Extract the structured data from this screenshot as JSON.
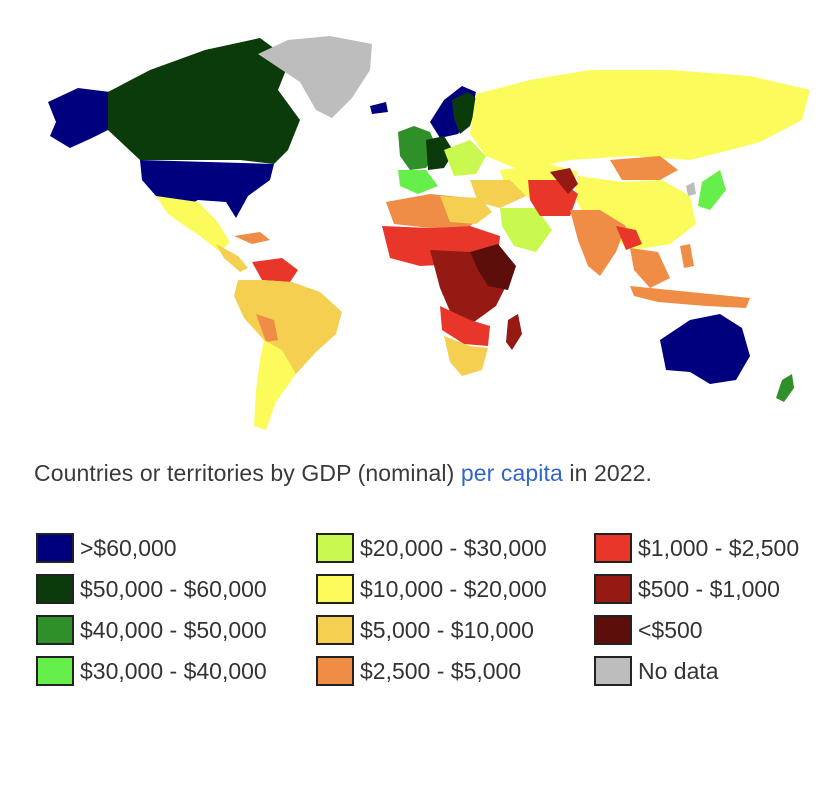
{
  "caption": {
    "before": "Countries or territories by GDP (nominal) ",
    "link": "per capita",
    "after": " in 2022."
  },
  "legend": {
    "col1": [
      {
        "label": ">$60,000",
        "color": "#00007f"
      },
      {
        "label": "$50,000 - $60,000",
        "color": "#0b3a0b"
      },
      {
        "label": "$40,000 - $50,000",
        "color": "#2f8f28"
      },
      {
        "label": "$30,000 - $40,000",
        "color": "#66ef4a"
      }
    ],
    "col2": [
      {
        "label": "$20,000 - $30,000",
        "color": "#c9f84f"
      },
      {
        "label": "$10,000 - $20,000",
        "color": "#fbfb5c"
      },
      {
        "label": "$5,000 - $10,000",
        "color": "#f5cf4f"
      },
      {
        "label": "$2,500 - $5,000",
        "color": "#ef8c45"
      }
    ],
    "col3": [
      {
        "label": "$1,000 - $2,500",
        "color": "#e8372a"
      },
      {
        "label": "$500 - $1,000",
        "color": "#951a14"
      },
      {
        "label": "<$500",
        "color": "#5c0e0a"
      },
      {
        "label": "No data",
        "color": "#bdbdbd"
      }
    ]
  }
}
